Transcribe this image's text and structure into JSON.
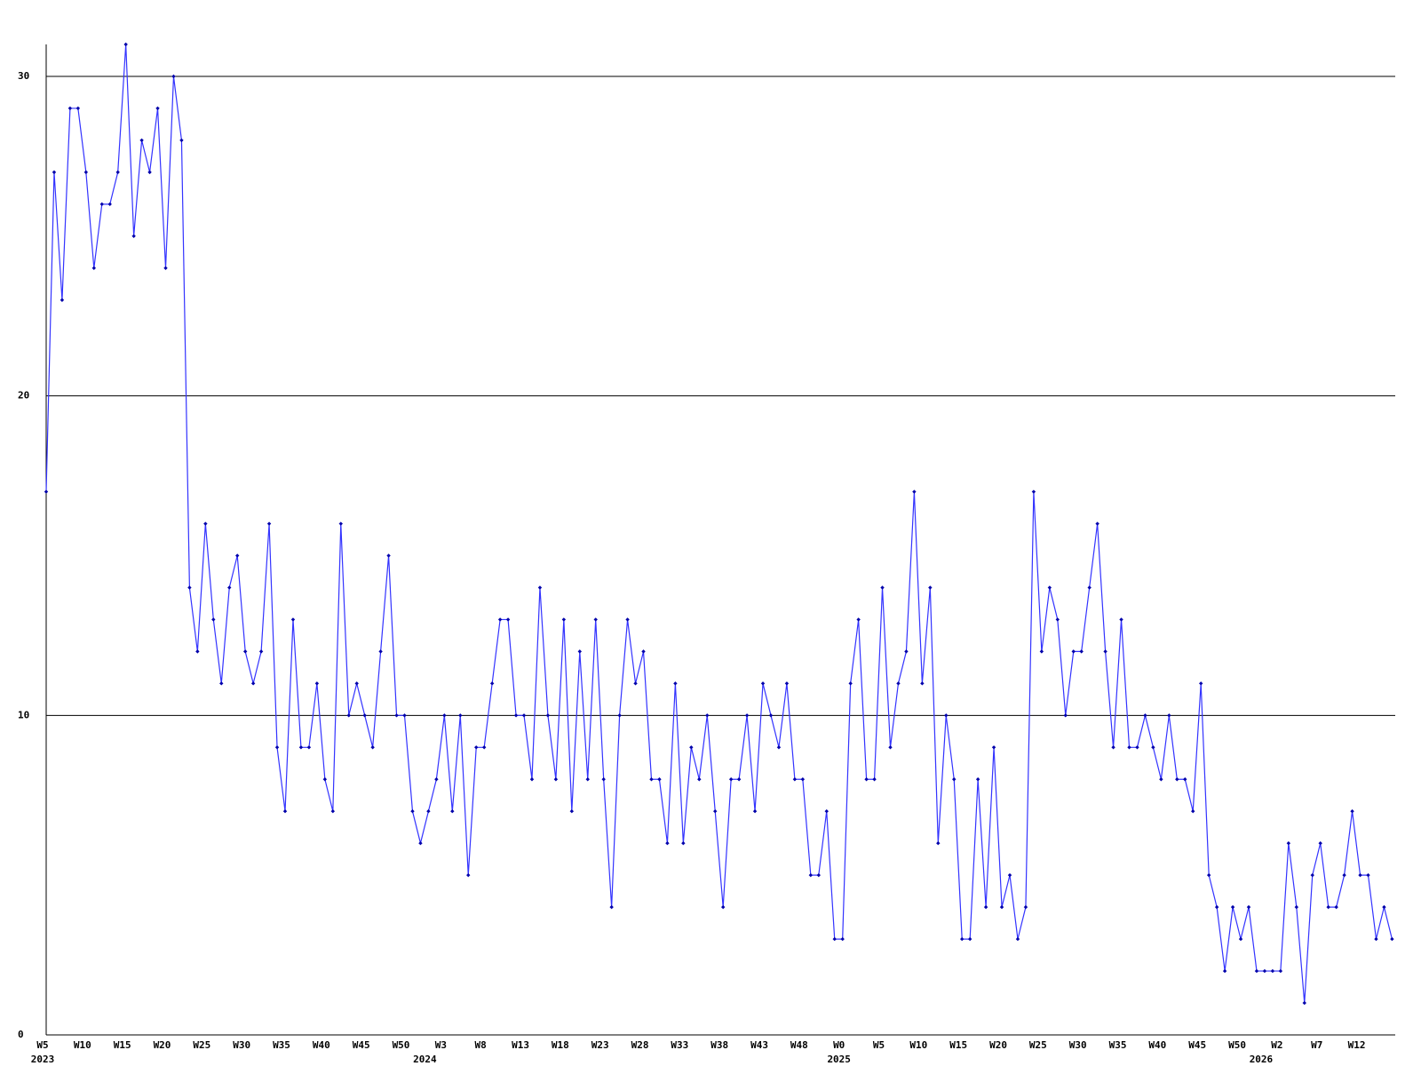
{
  "chart_data": {
    "type": "line",
    "categories": [
      "W5",
      null,
      null,
      null,
      null,
      "W10",
      null,
      null,
      null,
      null,
      "W15",
      null,
      null,
      null,
      null,
      "W20",
      null,
      null,
      null,
      null,
      "W25",
      null,
      null,
      null,
      null,
      "W30",
      null,
      null,
      null,
      null,
      "W35",
      null,
      null,
      null,
      null,
      "W40",
      null,
      null,
      null,
      null,
      "W45",
      null,
      null,
      null,
      null,
      "W50",
      null,
      null,
      null,
      null,
      "W3",
      null,
      null,
      null,
      null,
      "W8",
      null,
      null,
      null,
      null,
      "W13",
      null,
      null,
      null,
      null,
      "W18",
      null,
      null,
      null,
      null,
      "W23",
      null,
      null,
      null,
      null,
      "W28",
      null,
      null,
      null,
      null,
      "W33",
      null,
      null,
      null,
      null,
      "W38",
      null,
      null,
      null,
      null,
      "W43",
      null,
      null,
      null,
      null,
      "W48",
      null,
      null,
      null,
      null,
      "W0",
      null,
      null,
      null,
      null,
      "W5",
      null,
      null,
      null,
      null,
      "W10",
      null,
      null,
      null,
      null,
      "W15",
      null,
      null,
      null,
      null,
      "W20",
      null,
      null,
      null,
      null,
      "W25",
      null,
      null,
      null,
      null,
      "W30",
      null,
      null,
      null,
      null,
      "W35",
      null,
      null,
      null,
      null,
      "W40",
      null,
      null,
      null,
      null,
      "W45",
      null,
      null,
      null,
      null,
      "W50",
      null,
      null,
      null,
      null,
      "W2",
      null,
      null,
      null,
      null,
      "W7",
      null,
      null,
      null,
      null,
      "W12",
      null,
      null,
      null,
      null
    ],
    "year_labels": [
      "2023",
      null,
      null,
      null,
      null,
      null,
      null,
      null,
      null,
      null,
      null,
      null,
      null,
      null,
      null,
      null,
      null,
      null,
      null,
      null,
      null,
      null,
      null,
      null,
      null,
      null,
      null,
      null,
      null,
      null,
      null,
      null,
      null,
      null,
      null,
      null,
      null,
      null,
      null,
      null,
      null,
      null,
      null,
      null,
      null,
      null,
      null,
      null,
      "2024",
      null,
      null,
      null,
      null,
      null,
      null,
      null,
      null,
      null,
      null,
      null,
      null,
      null,
      null,
      null,
      null,
      null,
      null,
      null,
      null,
      null,
      null,
      null,
      null,
      null,
      null,
      null,
      null,
      null,
      null,
      null,
      null,
      null,
      null,
      null,
      null,
      null,
      null,
      null,
      null,
      null,
      null,
      null,
      null,
      null,
      null,
      null,
      null,
      null,
      null,
      null,
      "2025",
      null,
      null,
      null,
      null,
      null,
      null,
      null,
      null,
      null,
      null,
      null,
      null,
      null,
      null,
      null,
      null,
      null,
      null,
      null,
      null,
      null,
      null,
      null,
      null,
      null,
      null,
      null,
      null,
      null,
      null,
      null,
      null,
      null,
      null,
      null,
      null,
      null,
      null,
      null,
      null,
      null,
      null,
      null,
      null,
      null,
      null,
      null,
      null,
      null,
      null,
      null,
      null,
      "2026",
      null,
      null,
      null,
      null,
      null,
      null,
      null,
      null,
      null,
      null,
      null,
      null,
      null,
      null,
      null,
      null
    ],
    "values": [
      17,
      27,
      23,
      29,
      29,
      27,
      24,
      26,
      26,
      27,
      31,
      25,
      28,
      27,
      29,
      24,
      30,
      28,
      14,
      12,
      16,
      13,
      11,
      14,
      15,
      12,
      11,
      12,
      16,
      9,
      7,
      13,
      9,
      9,
      11,
      8,
      7,
      16,
      10,
      11,
      10,
      9,
      12,
      15,
      10,
      10,
      7,
      6,
      7,
      8,
      10,
      7,
      10,
      5,
      9,
      9,
      11,
      13,
      13,
      10,
      10,
      8,
      14,
      10,
      8,
      13,
      7,
      12,
      8,
      13,
      8,
      4,
      10,
      13,
      11,
      12,
      8,
      8,
      6,
      11,
      6,
      9,
      8,
      10,
      7,
      4,
      8,
      8,
      10,
      7,
      11,
      10,
      9,
      11,
      8,
      8,
      5,
      5,
      7,
      3,
      3,
      11,
      13,
      8,
      8,
      14,
      9,
      11,
      12,
      17,
      11,
      14,
      6,
      10,
      8,
      3,
      3,
      8,
      4,
      9,
      4,
      5,
      3,
      4,
      17,
      12,
      14,
      13,
      10,
      12,
      12,
      14,
      16,
      12,
      9,
      13,
      9,
      9,
      10,
      9,
      8,
      10,
      8,
      8,
      7,
      11,
      5,
      4,
      2,
      4,
      3,
      4,
      2,
      2,
      2,
      2,
      6,
      4,
      1,
      5,
      6,
      4,
      4,
      5,
      7,
      5,
      5,
      3,
      4,
      3
    ],
    "color": "#3333ff",
    "marker_color": "#0000aa",
    "ylim": [
      0,
      31
    ],
    "yticks": [
      0,
      10,
      20,
      30
    ],
    "grid": true
  }
}
